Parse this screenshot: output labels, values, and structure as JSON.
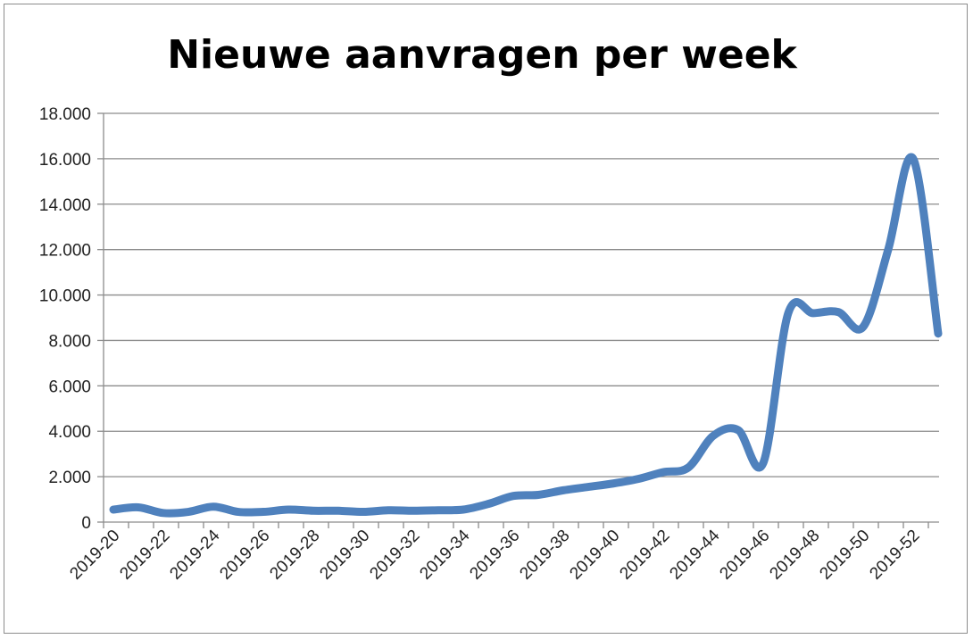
{
  "chart_data": {
    "type": "line",
    "title": "Nieuwe aanvragen per week",
    "xlabel": "",
    "ylabel": "",
    "ylim": [
      0,
      18000
    ],
    "y_ticks": [
      0,
      2000,
      4000,
      6000,
      8000,
      10000,
      12000,
      14000,
      16000,
      18000
    ],
    "y_tick_labels": [
      "0",
      "2.000",
      "4.000",
      "6.000",
      "8.000",
      "10.000",
      "12.000",
      "14.000",
      "16.000",
      "18.000"
    ],
    "x_tick_labels": [
      "2019-20",
      "2019-22",
      "2019-24",
      "2019-26",
      "2019-28",
      "2019-30",
      "2019-32",
      "2019-34",
      "2019-36",
      "2019-38",
      "2019-40",
      "2019-42",
      "2019-44",
      "2019-46",
      "2019-48",
      "2019-50",
      "2019-52"
    ],
    "grid": true,
    "legend": "none",
    "line_color": "#4f81bd",
    "x": [
      "2019-20",
      "2019-21",
      "2019-22",
      "2019-23",
      "2019-24",
      "2019-25",
      "2019-26",
      "2019-27",
      "2019-28",
      "2019-29",
      "2019-30",
      "2019-31",
      "2019-32",
      "2019-33",
      "2019-34",
      "2019-35",
      "2019-36",
      "2019-37",
      "2019-38",
      "2019-39",
      "2019-40",
      "2019-41",
      "2019-42",
      "2019-43",
      "2019-44",
      "2019-45",
      "2019-46",
      "2019-47",
      "2019-48",
      "2019-49",
      "2019-50",
      "2019-51",
      "2019-52",
      "2019-53"
    ],
    "values": [
      550,
      650,
      400,
      450,
      680,
      450,
      450,
      550,
      500,
      500,
      450,
      520,
      500,
      520,
      550,
      800,
      1150,
      1200,
      1400,
      1550,
      1700,
      1900,
      2200,
      2400,
      3800,
      4050,
      2600,
      9200,
      9200,
      9250,
      8600,
      12000,
      16000,
      8300
    ]
  }
}
